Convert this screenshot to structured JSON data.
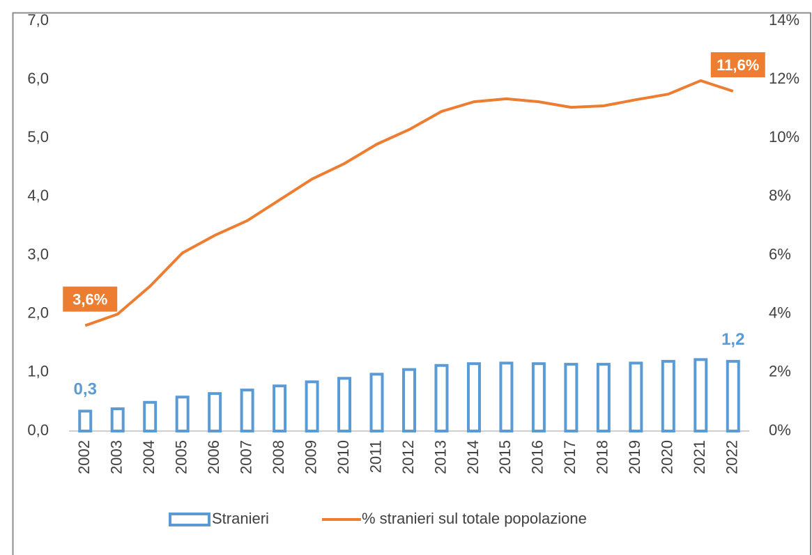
{
  "chart_data": {
    "type": "bar_line",
    "categories": [
      "2002",
      "2003",
      "2004",
      "2005",
      "2006",
      "2007",
      "2008",
      "2009",
      "2010",
      "2011",
      "2012",
      "2013",
      "2014",
      "2015",
      "2016",
      "2017",
      "2018",
      "2019",
      "2020",
      "2021",
      "2022"
    ],
    "series": [
      {
        "name": "Stranieri",
        "type": "bar",
        "color": "#5b9bd5",
        "values": [
          0.34,
          0.38,
          0.49,
          0.58,
          0.64,
          0.7,
          0.77,
          0.84,
          0.9,
          0.97,
          1.05,
          1.12,
          1.15,
          1.16,
          1.15,
          1.14,
          1.14,
          1.16,
          1.19,
          1.22,
          1.19
        ],
        "value_labels": [
          "0,3",
          null,
          null,
          null,
          null,
          null,
          null,
          null,
          null,
          null,
          null,
          null,
          null,
          null,
          null,
          null,
          null,
          null,
          null,
          null,
          "1,2"
        ]
      },
      {
        "name": "% stranieri sul totale popolazione",
        "type": "line",
        "axis": "y2",
        "color": "#ed7d31",
        "values": [
          3.6,
          3.99,
          4.94,
          6.08,
          6.68,
          7.18,
          7.89,
          8.6,
          9.13,
          9.79,
          10.29,
          10.91,
          11.24,
          11.34,
          11.24,
          11.05,
          11.1,
          11.31,
          11.5,
          11.96,
          11.6
        ],
        "value_labels": [
          "3,6%",
          null,
          null,
          null,
          null,
          null,
          null,
          null,
          null,
          null,
          null,
          null,
          null,
          null,
          null,
          null,
          null,
          null,
          null,
          null,
          "11,6%"
        ]
      }
    ],
    "ylim": [
      0,
      7
    ],
    "yticks": [
      {
        "value": 0,
        "label": "0,0"
      },
      {
        "value": 1,
        "label": "1,0"
      },
      {
        "value": 2,
        "label": "2,0"
      },
      {
        "value": 3,
        "label": "3,0"
      },
      {
        "value": 4,
        "label": "4,0"
      },
      {
        "value": 5,
        "label": "5,0"
      },
      {
        "value": 6,
        "label": "6,0"
      },
      {
        "value": 7,
        "label": "7,0"
      }
    ],
    "y2lim": [
      0,
      14
    ],
    "y2ticks": [
      {
        "value": 0,
        "label": "0%"
      },
      {
        "value": 2,
        "label": "2%"
      },
      {
        "value": 4,
        "label": "4%"
      },
      {
        "value": 6,
        "label": "6%"
      },
      {
        "value": 8,
        "label": "8%"
      },
      {
        "value": 10,
        "label": "10%"
      },
      {
        "value": 12,
        "label": "12%"
      },
      {
        "value": 14,
        "label": "14%"
      }
    ],
    "grid": false,
    "legend": "bottom"
  }
}
